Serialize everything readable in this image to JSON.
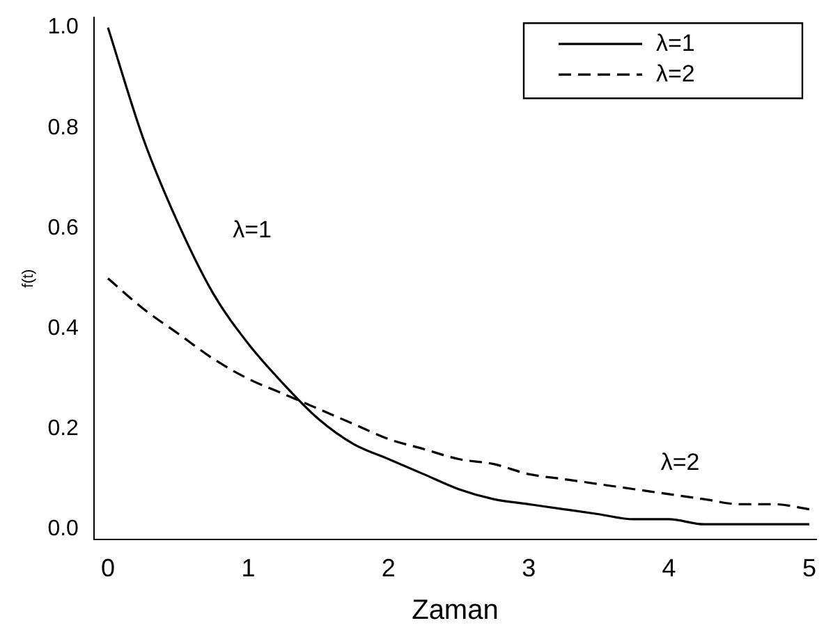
{
  "chart_data": {
    "type": "line",
    "xlabel": "Zaman",
    "ylabel": "f(t)",
    "x": [
      0,
      0.25,
      0.5,
      0.75,
      1,
      1.25,
      1.5,
      1.75,
      2,
      2.25,
      2.5,
      2.75,
      3,
      3.25,
      3.5,
      3.75,
      4,
      4.25,
      4.5,
      4.75,
      5
    ],
    "series": [
      {
        "name": "λ=1",
        "color": "#000000",
        "line_style": "solid",
        "values": [
          1,
          0.78,
          0.61,
          0.47,
          0.37,
          0.29,
          0.22,
          0.17,
          0.14,
          0.11,
          0.08,
          0.06,
          0.05,
          0.04,
          0.03,
          0.02,
          0.02,
          0.01,
          0.01,
          0.01,
          0.01
        ]
      },
      {
        "name": "λ=2",
        "color": "#000000",
        "line_style": "dashed",
        "values": [
          0.5,
          0.44,
          0.39,
          0.34,
          0.3,
          0.27,
          0.24,
          0.21,
          0.18,
          0.16,
          0.14,
          0.13,
          0.11,
          0.1,
          0.09,
          0.08,
          0.07,
          0.06,
          0.05,
          0.05,
          0.04
        ]
      }
    ],
    "xlim": [
      -0.1,
      5.05
    ],
    "xticks": [
      0,
      1,
      2,
      3,
      4,
      5
    ],
    "ylim": [
      -0.02,
      1.02
    ],
    "yticks": [
      {
        "value": 0,
        "label": "0.0"
      },
      {
        "value": 0.2,
        "label": "0.2"
      },
      {
        "value": 0.4,
        "label": "0.4"
      },
      {
        "value": 0.6,
        "label": "0.6"
      },
      {
        "value": 0.8,
        "label": "0.8"
      },
      {
        "value": 1,
        "label": "1.0"
      }
    ],
    "annotations": [
      "λ=1",
      "λ=2"
    ],
    "legend": "top right",
    "grid": false,
    "marker": "none"
  }
}
